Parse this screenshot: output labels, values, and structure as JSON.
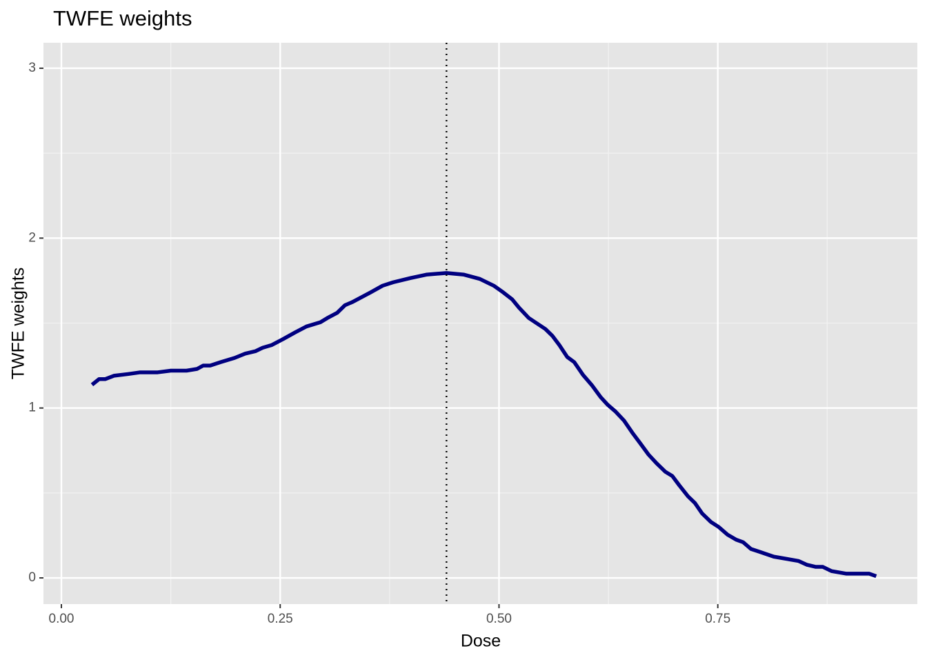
{
  "chart_data": {
    "type": "line",
    "title": "TWFE weights",
    "x_label": "Dose",
    "y_label": "TWFE weights",
    "x": [
      0.035,
      0.043,
      0.05,
      0.06,
      0.076,
      0.09,
      0.11,
      0.125,
      0.143,
      0.155,
      0.162,
      0.17,
      0.182,
      0.198,
      0.21,
      0.222,
      0.23,
      0.24,
      0.253,
      0.267,
      0.28,
      0.296,
      0.304,
      0.315,
      0.324,
      0.333,
      0.353,
      0.367,
      0.379,
      0.399,
      0.417,
      0.44,
      0.46,
      0.478,
      0.494,
      0.505,
      0.515,
      0.523,
      0.534,
      0.553,
      0.561,
      0.569,
      0.578,
      0.586,
      0.596,
      0.606,
      0.616,
      0.624,
      0.633,
      0.643,
      0.653,
      0.661,
      0.671,
      0.68,
      0.69,
      0.698,
      0.706,
      0.716,
      0.724,
      0.732,
      0.742,
      0.751,
      0.761,
      0.771,
      0.779,
      0.788,
      0.797,
      0.814,
      0.842,
      0.852,
      0.862,
      0.87,
      0.88,
      0.897,
      0.923,
      0.931
    ],
    "series": [
      {
        "color": "#000080",
        "values": [
          1.137,
          1.17,
          1.17,
          1.19,
          1.2,
          1.21,
          1.21,
          1.22,
          1.22,
          1.23,
          1.25,
          1.25,
          1.27,
          1.295,
          1.32,
          1.335,
          1.355,
          1.37,
          1.405,
          1.445,
          1.48,
          1.505,
          1.53,
          1.56,
          1.605,
          1.625,
          1.68,
          1.72,
          1.74,
          1.765,
          1.785,
          1.795,
          1.785,
          1.76,
          1.72,
          1.68,
          1.64,
          1.59,
          1.53,
          1.465,
          1.425,
          1.37,
          1.3,
          1.27,
          1.195,
          1.135,
          1.065,
          1.02,
          0.98,
          0.925,
          0.85,
          0.795,
          0.725,
          0.675,
          0.625,
          0.6,
          0.545,
          0.48,
          0.44,
          0.38,
          0.33,
          0.3,
          0.255,
          0.225,
          0.21,
          0.17,
          0.155,
          0.125,
          0.1,
          0.077,
          0.065,
          0.065,
          0.04,
          0.025,
          0.025,
          0.01
        ]
      }
    ],
    "vline": 0.44,
    "xlim": [
      -0.0205,
      0.978
    ],
    "ylim": [
      -0.154,
      3.15
    ],
    "xticks": [
      {
        "value": 0,
        "label": "0.00"
      },
      {
        "value": 0.25,
        "label": "0.25"
      },
      {
        "value": 0.5,
        "label": "0.50"
      },
      {
        "value": 0.75,
        "label": "0.75"
      }
    ],
    "yticks": [
      0,
      1,
      2,
      3
    ],
    "x_minor_grid": [
      0.125,
      0.375,
      0.625,
      0.875
    ],
    "y_minor_grid": [
      0.5,
      1.5,
      2.5
    ],
    "grid": true
  }
}
